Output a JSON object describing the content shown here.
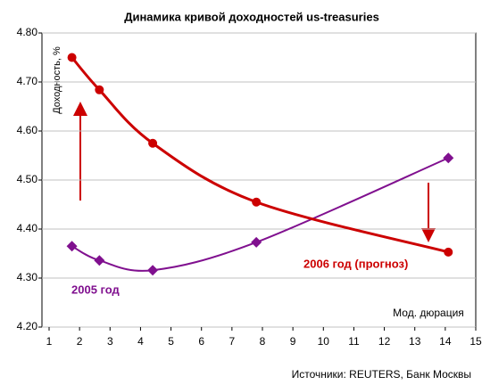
{
  "chart_data": {
    "type": "line",
    "title": "Динамика кривой доходностей us-treasuries",
    "y_label": "Доходность, %",
    "x_label": "Мод. дюрация",
    "source": "Источники: REUTERS, Банк Москвы",
    "xlim": [
      1,
      15
    ],
    "xticks": [
      1,
      2,
      3,
      4,
      5,
      6,
      7,
      8,
      9,
      10,
      11,
      12,
      13,
      14,
      15
    ],
    "ylim": [
      4.2,
      4.8
    ],
    "yticks": [
      {
        "value": 4.2,
        "label": "4.20"
      },
      {
        "value": 4.3,
        "label": "4.30"
      },
      {
        "value": 4.4,
        "label": "4.40"
      },
      {
        "value": 4.5,
        "label": "4.50"
      },
      {
        "value": 4.6,
        "label": "4.60"
      },
      {
        "value": 4.7,
        "label": "4.70"
      },
      {
        "value": 4.8,
        "label": "4.80"
      }
    ],
    "grid": true,
    "series": [
      {
        "name": "2005 год",
        "color": "#80108f",
        "marker": "diamond",
        "x": [
          1.75,
          2.65,
          4.4,
          7.8,
          14.1
        ],
        "values": [
          4.365,
          4.336,
          4.316,
          4.373,
          4.545
        ]
      },
      {
        "name": "2006 год (прогноз)",
        "color": "#cc0000",
        "marker": "circle",
        "x": [
          1.75,
          2.65,
          4.4,
          7.8,
          14.1
        ],
        "values": [
          4.75,
          4.684,
          4.575,
          4.455,
          4.353
        ]
      }
    ]
  }
}
